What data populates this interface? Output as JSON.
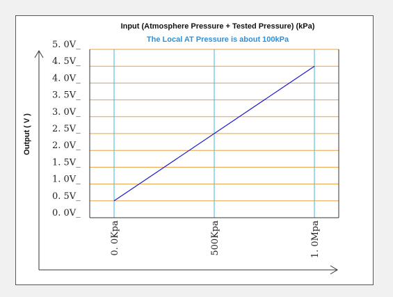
{
  "chart_data": {
    "type": "line",
    "title": "Input (Atmosphere Pressure + Tested Pressure) (kPa)",
    "subtitle": "The Local AT Pressure is about 100kPa",
    "ylabel": "Output ( V )",
    "xlabel": "",
    "y_ticks": [
      "5. 0V_",
      "4. 5V_",
      "4. 0V_",
      "3. 5V_",
      "3. 0V_",
      "2. 5V_",
      "2. 0V_",
      "1. 5V_",
      "1. 0V_",
      "0. 5V_",
      "0. 0V_"
    ],
    "y_tick_values": [
      5.0,
      4.5,
      4.0,
      3.5,
      3.0,
      2.5,
      2.0,
      1.5,
      1.0,
      0.5,
      0.0
    ],
    "x_ticks": [
      "0. 0Kpa",
      "500Kpa",
      "1. 0Mpa"
    ],
    "x_tick_values": [
      0,
      500,
      1000
    ],
    "ylim": [
      0,
      5
    ],
    "xlim": [
      0,
      1000
    ],
    "grid": true,
    "series": [
      {
        "x": [
          0,
          1000
        ],
        "y": [
          0.5,
          4.5
        ]
      }
    ],
    "colors": {
      "line": "#1a1acc",
      "horizontal_grid": "#e8a040",
      "vertical_grid": "#40b4d8",
      "axis": "#333333",
      "title": "#111111",
      "subtitle": "#2f8fd6"
    }
  }
}
